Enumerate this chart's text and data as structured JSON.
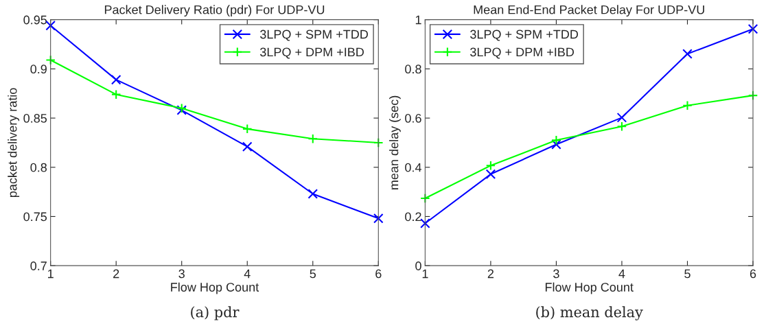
{
  "chart_data": [
    {
      "type": "line",
      "title": "Packet Delivery Ratio (pdr) For UDP-VU",
      "xlabel": "Flow Hop Count",
      "ylabel": "packet delivery ratio",
      "x": [
        1,
        2,
        3,
        4,
        5,
        6
      ],
      "xlim": [
        1,
        6
      ],
      "xticks": [
        1,
        2,
        3,
        4,
        5,
        6
      ],
      "ylim": [
        0.7,
        0.95
      ],
      "yticks": [
        0.7,
        0.75,
        0.8,
        0.85,
        0.9,
        0.95
      ],
      "series": [
        {
          "name": "3LPQ + SPM +TDD",
          "color": "#0000ff",
          "marker": "cross",
          "values": [
            0.944,
            0.889,
            0.858,
            0.821,
            0.773,
            0.748
          ]
        },
        {
          "name": "3LPQ + DPM +IBD",
          "color": "#00ff00",
          "marker": "plus",
          "values": [
            0.909,
            0.874,
            0.86,
            0.839,
            0.829,
            0.825
          ]
        }
      ],
      "legend": "top right",
      "grid": false,
      "annotations": [
        "(a) pdr"
      ]
    },
    {
      "type": "line",
      "title": "Mean End-End Packet Delay For UDP-VU",
      "xlabel": "Flow Hop Count",
      "ylabel": "mean delay (sec)",
      "x": [
        1,
        2,
        3,
        4,
        5,
        6
      ],
      "xlim": [
        1,
        6
      ],
      "xticks": [
        1,
        2,
        3,
        4,
        5,
        6
      ],
      "ylim": [
        0,
        1
      ],
      "yticks": [
        0,
        0.2,
        0.4,
        0.6,
        0.8,
        1
      ],
      "series": [
        {
          "name": "3LPQ + SPM +TDD",
          "color": "#0000ff",
          "marker": "cross",
          "values": [
            0.172,
            0.372,
            0.493,
            0.602,
            0.861,
            0.962
          ]
        },
        {
          "name": "3LPQ + DPM +IBD",
          "color": "#00ff00",
          "marker": "plus",
          "values": [
            0.274,
            0.407,
            0.51,
            0.566,
            0.651,
            0.692
          ]
        }
      ],
      "legend": "top left",
      "grid": false,
      "annotations": [
        "(b) mean delay"
      ]
    }
  ]
}
